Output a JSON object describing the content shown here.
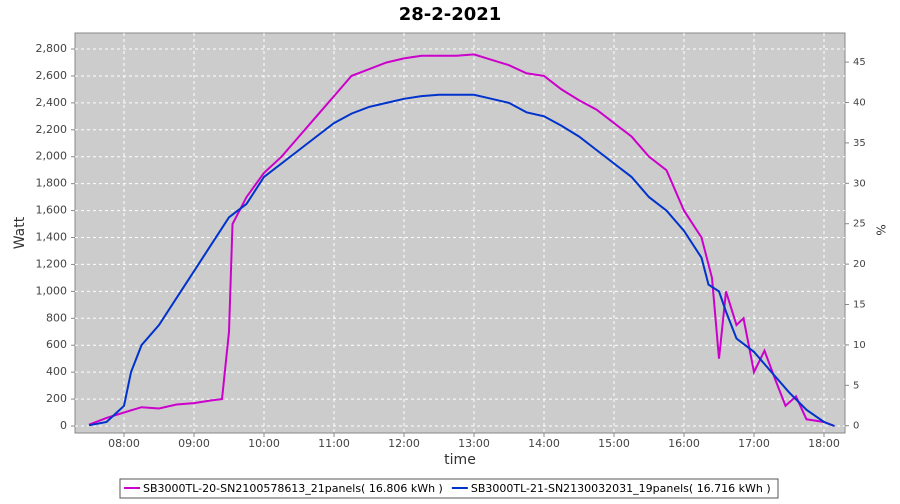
{
  "chart_data": {
    "type": "line",
    "title": "28-2-2021",
    "x_label": "time",
    "y_label": "Watt",
    "y2_label": "%",
    "xlim": [
      7.3,
      18.3
    ],
    "xticks": [
      {
        "value": 8,
        "label": "08:00"
      },
      {
        "value": 9,
        "label": "09:00"
      },
      {
        "value": 10,
        "label": "10:00"
      },
      {
        "value": 11,
        "label": "11:00"
      },
      {
        "value": 12,
        "label": "12:00"
      },
      {
        "value": 13,
        "label": "13:00"
      },
      {
        "value": 14,
        "label": "14:00"
      },
      {
        "value": 15,
        "label": "15:00"
      },
      {
        "value": 16,
        "label": "16:00"
      },
      {
        "value": 17,
        "label": "17:00"
      },
      {
        "value": 18,
        "label": "18:00"
      }
    ],
    "ylim": [
      -52,
      2919
    ],
    "yticks": [
      0,
      200,
      400,
      600,
      800,
      {
        "value": 1000,
        "label": "1,000"
      },
      {
        "value": 1200,
        "label": "1,200"
      },
      {
        "value": 1400,
        "label": "1,400"
      },
      {
        "value": 1600,
        "label": "1,600"
      },
      {
        "value": 1800,
        "label": "1,800"
      },
      {
        "value": 2000,
        "label": "2,000"
      },
      {
        "value": 2200,
        "label": "2,200"
      },
      {
        "value": 2400,
        "label": "2,400"
      },
      {
        "value": 2600,
        "label": "2,600"
      },
      {
        "value": 2800,
        "label": "2,800"
      }
    ],
    "y2lim": [
      -0.9,
      48.6
    ],
    "y2ticks": [
      0,
      5,
      10,
      15,
      20,
      25,
      30,
      35,
      40,
      45
    ],
    "grid": true,
    "legend": "bottom",
    "series": [
      {
        "name": "SB3000TL-20-SN2100578613_21panels( 16.806 kWh )",
        "color": "#cc00cc",
        "x": [
          7.5,
          7.75,
          8.0,
          8.25,
          8.5,
          8.75,
          9.0,
          9.25,
          9.4,
          9.5,
          9.55,
          9.75,
          10.0,
          10.25,
          10.5,
          10.75,
          11.0,
          11.25,
          11.5,
          11.75,
          12.0,
          12.25,
          12.5,
          12.75,
          13.0,
          13.25,
          13.5,
          13.75,
          14.0,
          14.25,
          14.5,
          14.75,
          15.0,
          15.25,
          15.5,
          15.75,
          16.0,
          16.25,
          16.4,
          16.5,
          16.6,
          16.75,
          16.85,
          17.0,
          17.15,
          17.3,
          17.45,
          17.6,
          17.75,
          18.0,
          18.15
        ],
        "values": [
          10,
          60,
          100,
          140,
          130,
          160,
          170,
          190,
          200,
          700,
          1500,
          1700,
          1880,
          2000,
          2150,
          2300,
          2450,
          2600,
          2650,
          2700,
          2730,
          2750,
          2750,
          2750,
          2760,
          2720,
          2680,
          2620,
          2600,
          2500,
          2420,
          2350,
          2250,
          2150,
          2000,
          1900,
          1600,
          1400,
          1100,
          500,
          1000,
          750,
          800,
          400,
          560,
          350,
          150,
          220,
          50,
          30,
          0
        ]
      },
      {
        "name": "SB3000TL-21-SN2130032031_19panels( 16.716 kWh )",
        "color": "#0033cc",
        "x": [
          7.5,
          7.75,
          8.0,
          8.1,
          8.25,
          8.5,
          8.75,
          9.0,
          9.25,
          9.5,
          9.75,
          10.0,
          10.25,
          10.5,
          10.75,
          11.0,
          11.25,
          11.5,
          11.75,
          12.0,
          12.25,
          12.5,
          12.75,
          13.0,
          13.25,
          13.5,
          13.75,
          14.0,
          14.25,
          14.5,
          14.75,
          15.0,
          15.25,
          15.5,
          15.75,
          16.0,
          16.25,
          16.35,
          16.5,
          16.6,
          16.75,
          17.0,
          17.25,
          17.5,
          17.75,
          18.0,
          18.15
        ],
        "values": [
          5,
          30,
          150,
          400,
          600,
          750,
          950,
          1150,
          1350,
          1550,
          1650,
          1850,
          1950,
          2050,
          2150,
          2250,
          2320,
          2370,
          2400,
          2430,
          2450,
          2460,
          2460,
          2460,
          2430,
          2400,
          2330,
          2300,
          2230,
          2150,
          2050,
          1950,
          1850,
          1700,
          1600,
          1450,
          1250,
          1050,
          1000,
          850,
          650,
          550,
          400,
          250,
          120,
          30,
          0
        ]
      }
    ]
  }
}
